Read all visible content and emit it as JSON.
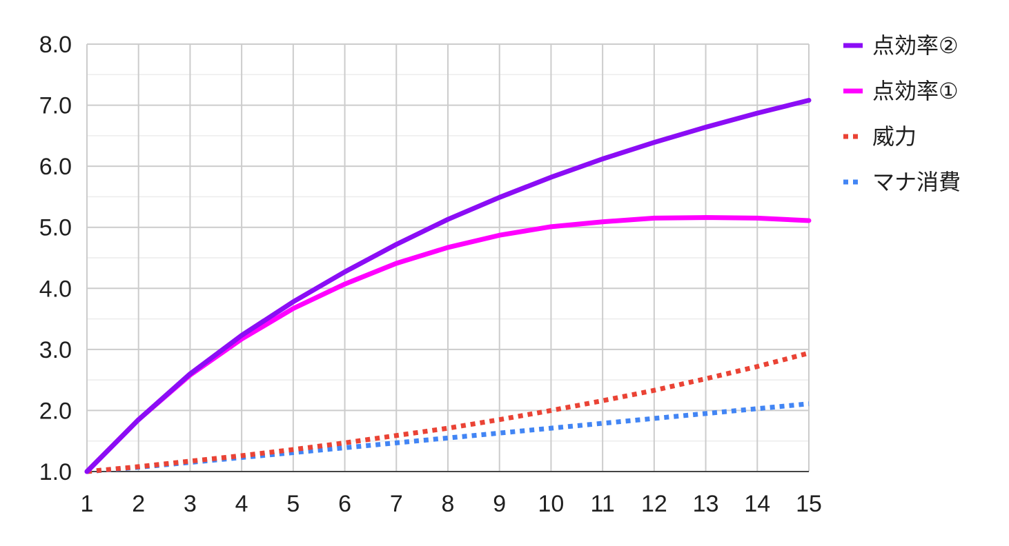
{
  "chart_data": {
    "type": "line",
    "title": "",
    "xlabel": "",
    "ylabel": "",
    "x": [
      1,
      2,
      3,
      4,
      5,
      6,
      7,
      8,
      9,
      10,
      11,
      12,
      13,
      14,
      15
    ],
    "x_ticks": [
      "1",
      "2",
      "3",
      "4",
      "5",
      "6",
      "7",
      "8",
      "9",
      "10",
      "11",
      "12",
      "13",
      "14",
      "15"
    ],
    "ylim": [
      1.0,
      8.0
    ],
    "y_ticks": [
      "1.0",
      "2.0",
      "3.0",
      "4.0",
      "5.0",
      "6.0",
      "7.0",
      "8.0"
    ],
    "grid": true,
    "legend_position": "right",
    "series": [
      {
        "name": "点効率②",
        "color": "#8b0df5",
        "style": "solid",
        "values": [
          1.0,
          1.85,
          2.6,
          3.23,
          3.78,
          4.27,
          4.72,
          5.13,
          5.49,
          5.82,
          6.12,
          6.39,
          6.64,
          6.87,
          7.08
        ]
      },
      {
        "name": "点効率①",
        "color": "#ff00ff",
        "style": "solid",
        "values": [
          1.0,
          1.85,
          2.58,
          3.17,
          3.67,
          4.07,
          4.41,
          4.67,
          4.87,
          5.01,
          5.09,
          5.15,
          5.16,
          5.15,
          5.11
        ]
      },
      {
        "name": "威力",
        "color": "#ea4335",
        "style": "dotted",
        "values": [
          1.0,
          1.08,
          1.17,
          1.26,
          1.36,
          1.47,
          1.59,
          1.71,
          1.85,
          2.0,
          2.16,
          2.33,
          2.52,
          2.72,
          2.94
        ]
      },
      {
        "name": "マナ消費",
        "color": "#4285f4",
        "style": "dotted",
        "values": [
          1.0,
          1.07,
          1.15,
          1.23,
          1.31,
          1.39,
          1.47,
          1.55,
          1.63,
          1.71,
          1.79,
          1.87,
          1.95,
          2.03,
          2.11
        ]
      }
    ]
  }
}
